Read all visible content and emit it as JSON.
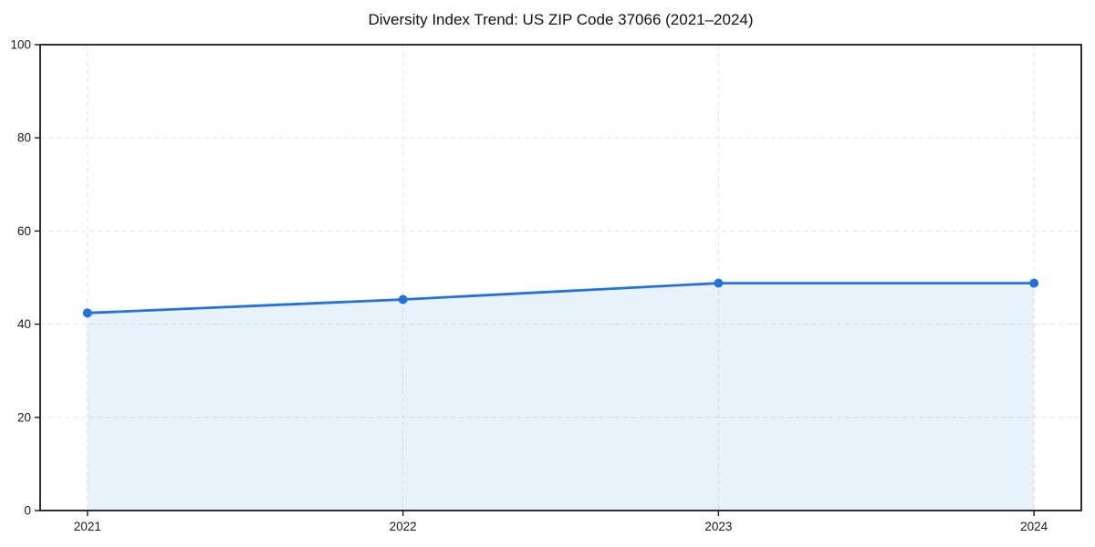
{
  "chart_data": {
    "type": "area",
    "title": "Diversity Index Trend: US ZIP Code 37066 (2021–2024)",
    "xlabel": "",
    "ylabel": "",
    "x": [
      2021,
      2022,
      2023,
      2024
    ],
    "series": [
      {
        "name": "Diversity Index",
        "values": [
          42.4,
          45.3,
          48.8,
          48.8
        ]
      }
    ],
    "xticks": [
      "2021",
      "2022",
      "2023",
      "2024"
    ],
    "xtick_values": [
      2021,
      2022,
      2023,
      2024
    ],
    "yticks": [
      "0",
      "20",
      "40",
      "60",
      "80",
      "100"
    ],
    "ytick_values": [
      0,
      20,
      40,
      60,
      80,
      100
    ],
    "xlim": [
      2020.85,
      2024.15
    ],
    "ylim": [
      0,
      100
    ],
    "grid": "dashed-both-axes",
    "legend": "none",
    "marker": "circle",
    "colors": {
      "line": "#2372db",
      "marker": "#2372db",
      "fill": "#2372db",
      "fill_opacity": 0.1,
      "grid": "#e2e2e2",
      "spine": "#1a1a1a",
      "tick_label": "#1a1a1a",
      "background": "#ffffff"
    }
  }
}
